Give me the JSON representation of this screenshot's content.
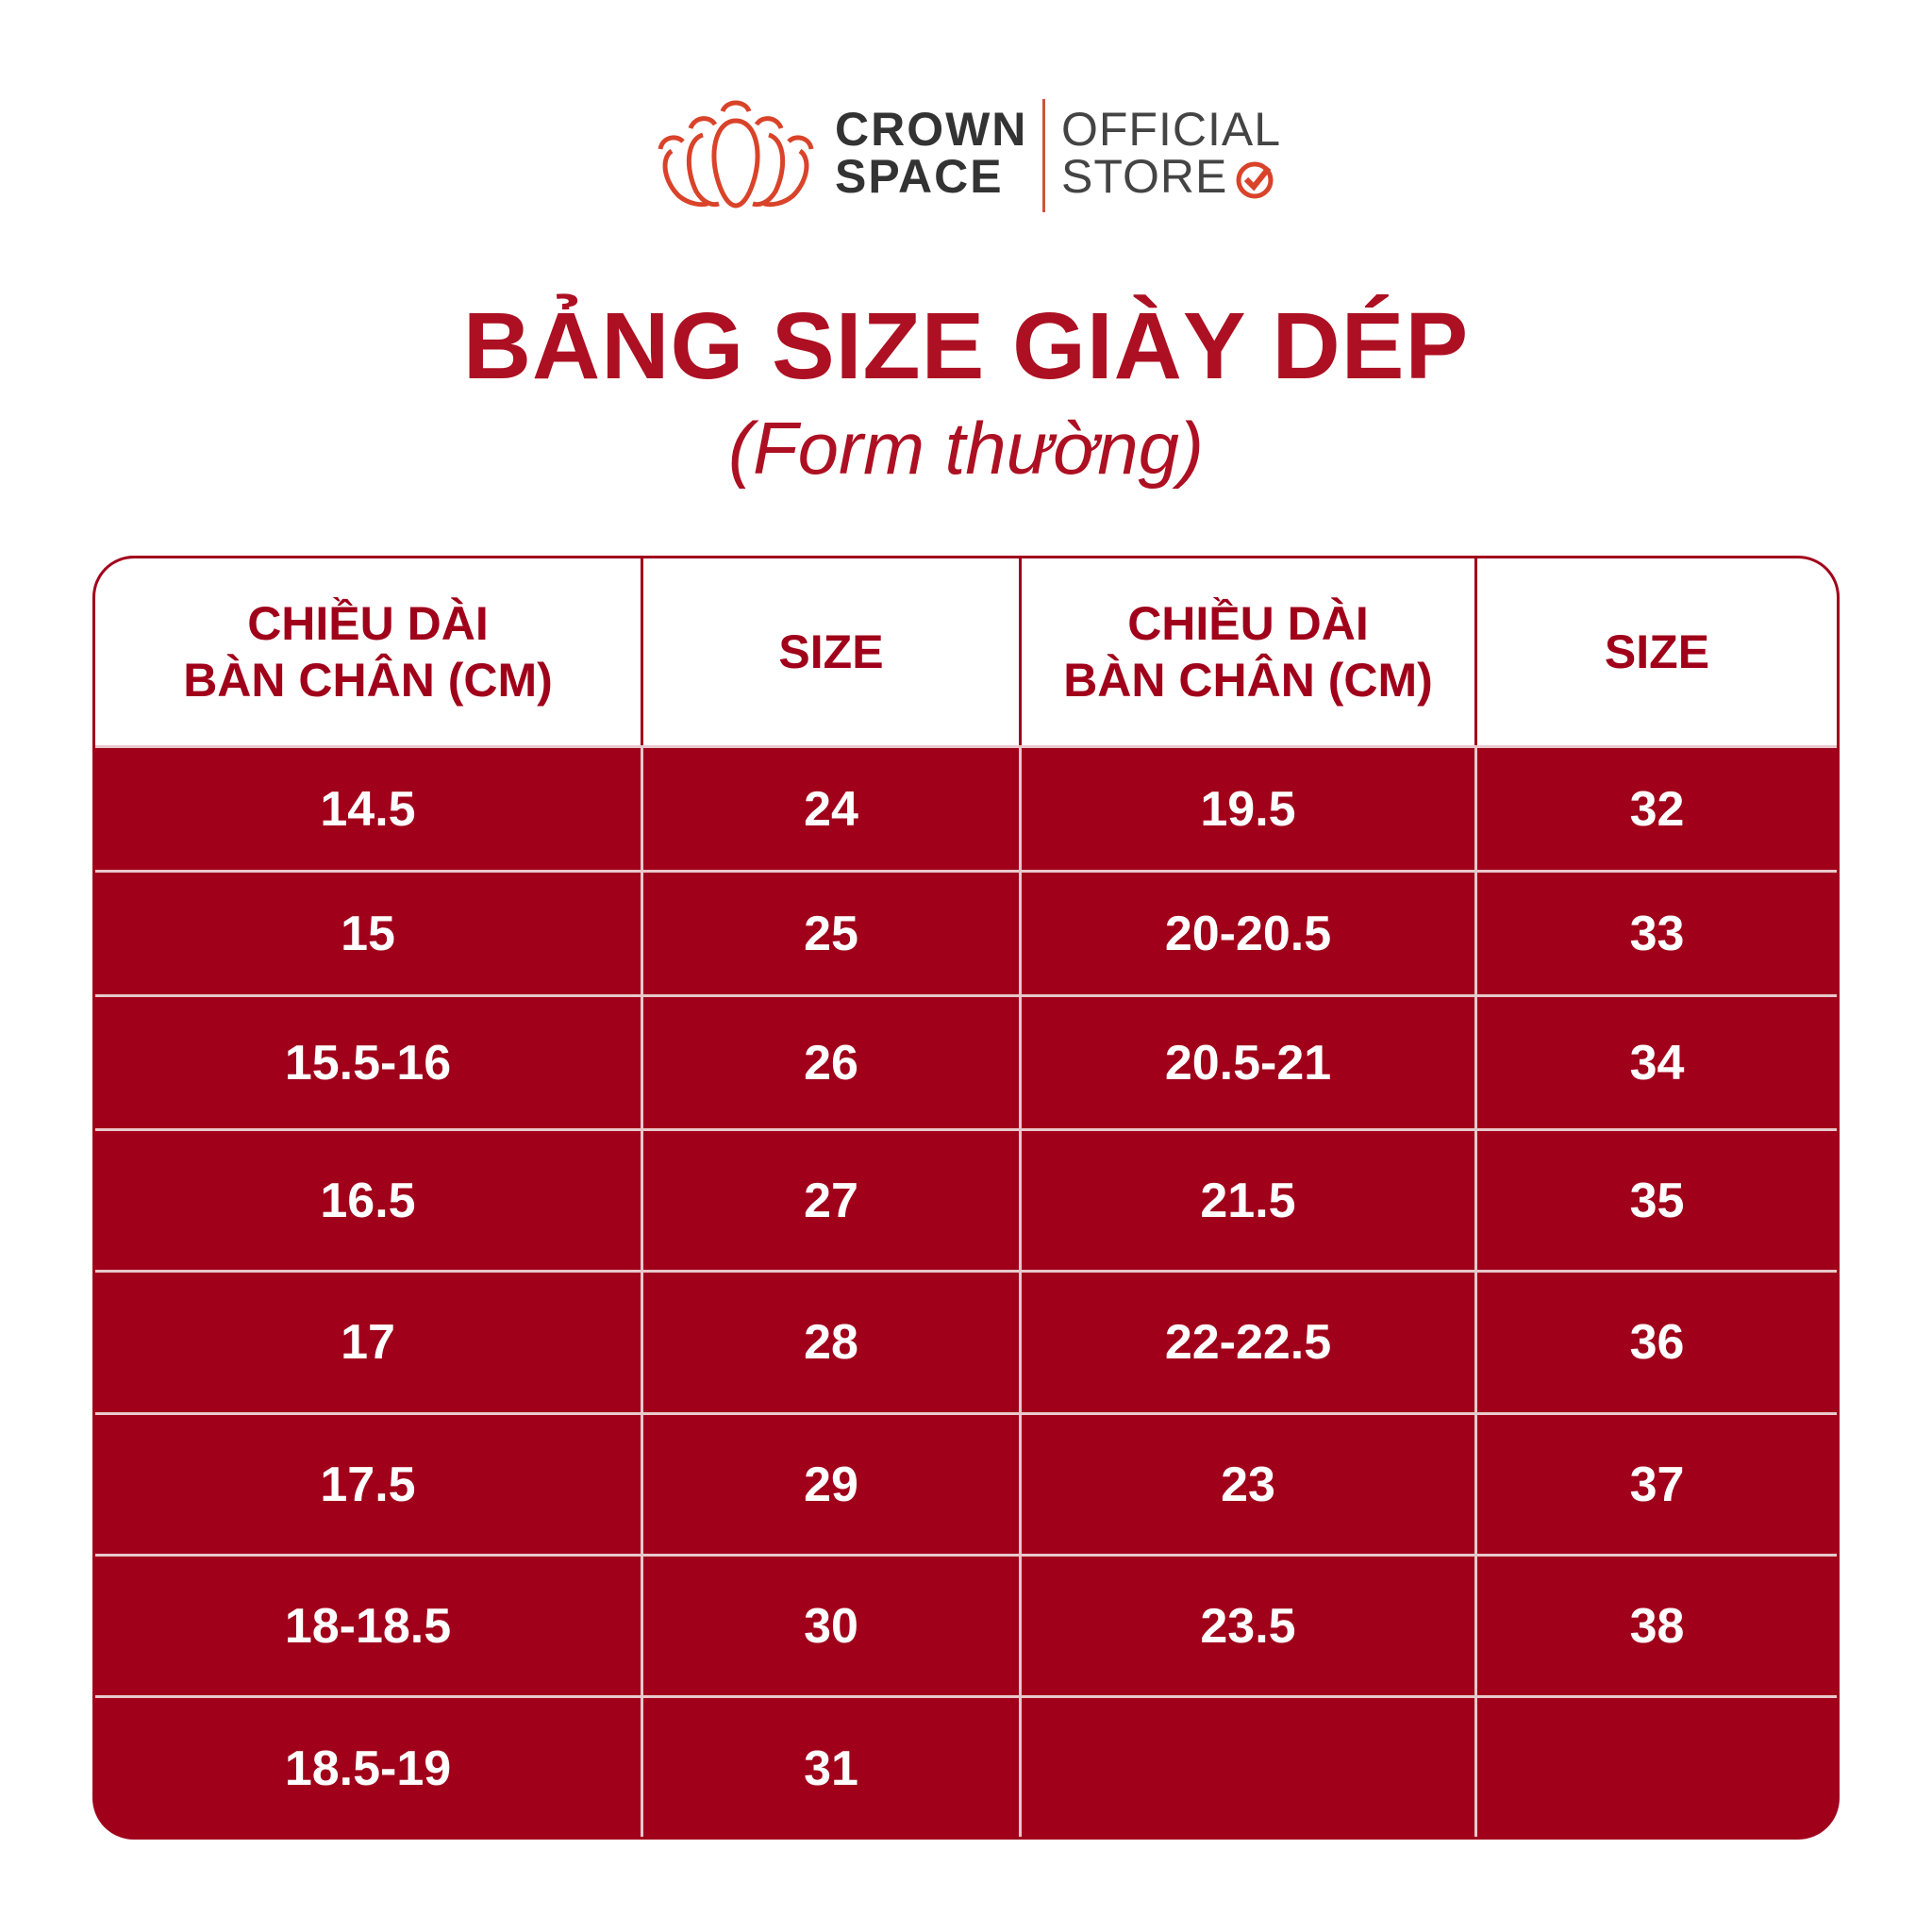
{
  "logo": {
    "brand_line1": "CROWN",
    "brand_line2": "SPACE",
    "store_line1": "OFFICIAL",
    "store_line2": "STORE",
    "icon": "crown-lotus-icon",
    "check_icon": "check-circle-icon",
    "accent": "#d9432a"
  },
  "title": "BẢNG SIZE GIÀY DÉP",
  "subtitle": "(Form thường)",
  "colors": {
    "primary": "#a0001a",
    "title": "#ad1022"
  },
  "table": {
    "headers": [
      "CHIỀU DÀI\nBÀN CHÂN (CM)",
      "SIZE",
      "CHIỀU DÀI\nBÀN CHÂN (CM)",
      "SIZE"
    ],
    "rows": [
      [
        "14.5",
        "24",
        "19.5",
        "32"
      ],
      [
        "15",
        "25",
        "20-20.5",
        "33"
      ],
      [
        "15.5-16",
        "26",
        "20.5-21",
        "34"
      ],
      [
        "16.5",
        "27",
        "21.5",
        "35"
      ],
      [
        "17",
        "28",
        "22-22.5",
        "36"
      ],
      [
        "17.5",
        "29",
        "23",
        "37"
      ],
      [
        "18-18.5",
        "30",
        "23.5",
        "38"
      ],
      [
        "18.5-19",
        "31",
        "",
        ""
      ]
    ]
  }
}
